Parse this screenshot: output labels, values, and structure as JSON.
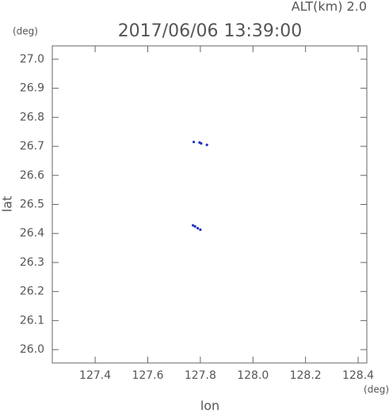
{
  "chart_data": {
    "type": "scatter",
    "title": "2017/06/06 13:39:00",
    "annotation": "ALT(km) 2.0",
    "y_unit": "(deg)",
    "x_unit": "(deg)",
    "x_label": "lon",
    "y_label": "lat",
    "xlim": [
      127.237,
      128.433
    ],
    "ylim": [
      25.954,
      27.046
    ],
    "xticks": [
      127.4,
      127.6,
      127.8,
      {
        "value": 128.0,
        "label": "128.0"
      },
      128.2,
      128.4
    ],
    "yticks": [
      {
        "value": 26.0,
        "label": "26.0"
      },
      26.1,
      26.2,
      26.3,
      26.4,
      26.5,
      26.6,
      26.7,
      26.8,
      26.9,
      {
        "value": 27.0,
        "label": "27.0"
      }
    ],
    "series": [
      {
        "name": null,
        "color": "#2030c0",
        "x": [
          127.775,
          127.797,
          127.803,
          127.825,
          127.772,
          127.78,
          127.79,
          127.8
        ],
        "values": [
          26.715,
          26.713,
          26.71,
          26.705,
          26.428,
          26.424,
          26.418,
          26.413
        ]
      }
    ]
  }
}
